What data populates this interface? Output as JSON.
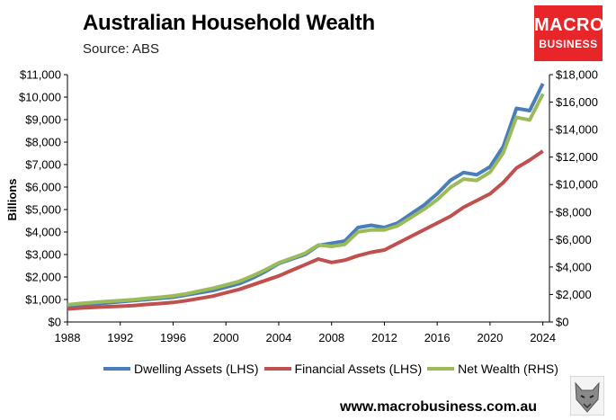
{
  "header": {
    "title": "Australian Household Wealth",
    "subtitle": "Source: ABS"
  },
  "logo": {
    "line1": "MACRO",
    "line2": "BUSINESS",
    "color": "#e8262a"
  },
  "footer": {
    "url": "www.macrobusiness.com.au"
  },
  "chart_data": {
    "type": "line",
    "ylabel": "Billions",
    "xlim": [
      1988,
      2024.5
    ],
    "ylim_left": [
      0,
      11000
    ],
    "ylim_right": [
      0,
      18000
    ],
    "x_ticks": [
      "1988",
      "1992",
      "1996",
      "2000",
      "2004",
      "2008",
      "2012",
      "2016",
      "2020",
      "2024"
    ],
    "y_ticks_left": [
      "$0",
      "$1,000",
      "$2,000",
      "$3,000",
      "$4,000",
      "$5,000",
      "$6,000",
      "$7,000",
      "$8,000",
      "$9,000",
      "$10,000",
      "$11,000"
    ],
    "y_ticks_right": [
      "$0",
      "$2,000",
      "$4,000",
      "$6,000",
      "$8,000",
      "$10,000",
      "$12,000",
      "$14,000",
      "$16,000",
      "$18,000"
    ],
    "x": [
      1988,
      1989,
      1990,
      1991,
      1992,
      1993,
      1994,
      1995,
      1996,
      1997,
      1998,
      1999,
      2000,
      2001,
      2002,
      2003,
      2004,
      2005,
      2006,
      2007,
      2008,
      2009,
      2010,
      2011,
      2012,
      2013,
      2014,
      2015,
      2016,
      2017,
      2018,
      2019,
      2020,
      2021,
      2022,
      2023,
      2024
    ],
    "series": [
      {
        "name": "Dwelling Assets (LHS)",
        "axis": "left",
        "color": "#4a7ebb",
        "values": [
          700,
          750,
          800,
          850,
          900,
          950,
          1000,
          1050,
          1100,
          1200,
          1300,
          1400,
          1550,
          1700,
          1950,
          2250,
          2600,
          2800,
          3000,
          3400,
          3500,
          3600,
          4200,
          4300,
          4200,
          4400,
          4800,
          5200,
          5700,
          6300,
          6650,
          6550,
          6900,
          7800,
          9500,
          9400,
          10600
        ]
      },
      {
        "name": "Financial Assets (LHS)",
        "axis": "left",
        "color": "#c0504d",
        "values": [
          580,
          620,
          650,
          680,
          700,
          730,
          780,
          820,
          870,
          950,
          1050,
          1150,
          1300,
          1450,
          1650,
          1850,
          2050,
          2300,
          2550,
          2800,
          2650,
          2750,
          2950,
          3100,
          3200,
          3500,
          3800,
          4100,
          4400,
          4700,
          5100,
          5400,
          5700,
          6200,
          6850,
          7200,
          7600
        ]
      },
      {
        "name": "Net Wealth (RHS)",
        "axis": "right",
        "color": "#9bbb59",
        "values": [
          1250,
          1350,
          1420,
          1500,
          1550,
          1620,
          1720,
          1800,
          1900,
          2050,
          2250,
          2450,
          2700,
          2950,
          3350,
          3800,
          4300,
          4650,
          5000,
          5600,
          5500,
          5650,
          6550,
          6700,
          6700,
          7000,
          7600,
          8200,
          8900,
          9800,
          10400,
          10300,
          10900,
          12300,
          14900,
          14700,
          16600
        ]
      }
    ]
  }
}
